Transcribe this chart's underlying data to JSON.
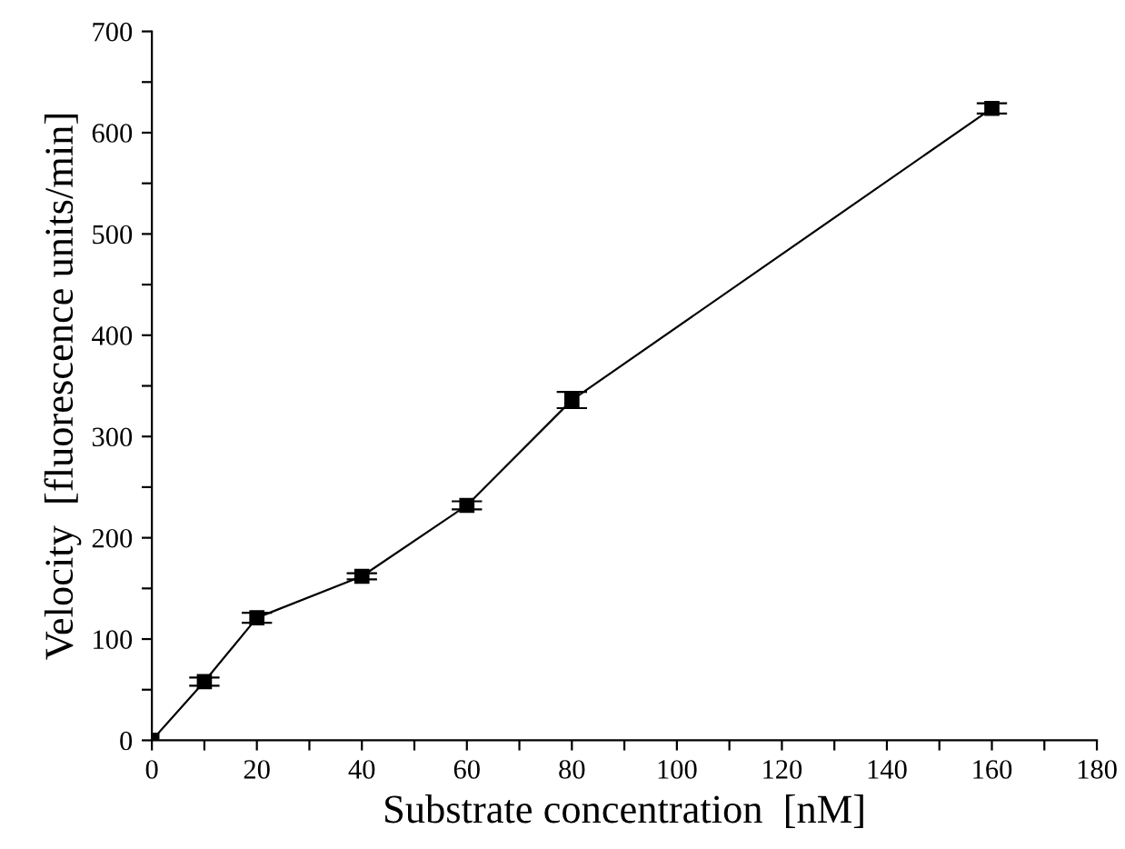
{
  "chart_data": {
    "type": "line",
    "xlabel": "Substrate concentration  [nM]",
    "ylabel": "Velocity  [fluorescence units/min]",
    "x": [
      0,
      10,
      20,
      40,
      60,
      80,
      160
    ],
    "series": [
      {
        "color": "#000000",
        "values": [
          0,
          58,
          121,
          162,
          232,
          336,
          624
        ],
        "errors": [
          null,
          4,
          5,
          3,
          4,
          8,
          5
        ]
      }
    ],
    "marker": "square",
    "line_style": "solid",
    "grid": false,
    "legend": false,
    "xlim": [
      0,
      180
    ],
    "xticks": [
      0,
      {
        "value": 10,
        "label": null
      },
      20,
      {
        "value": 30,
        "label": null
      },
      40,
      {
        "value": 50,
        "label": null
      },
      60,
      {
        "value": 70,
        "label": null
      },
      80,
      {
        "value": 90,
        "label": null
      },
      100,
      {
        "value": 110,
        "label": null
      },
      120,
      {
        "value": 130,
        "label": null
      },
      140,
      {
        "value": 150,
        "label": null
      },
      160,
      {
        "value": 170,
        "label": null
      },
      180
    ],
    "ylim": [
      0,
      700
    ],
    "yticks": [
      0,
      {
        "value": 50,
        "label": null
      },
      100,
      {
        "value": 150,
        "label": null
      },
      200,
      {
        "value": 250,
        "label": null
      },
      300,
      {
        "value": 350,
        "label": null
      },
      400,
      {
        "value": 450,
        "label": null
      },
      500,
      {
        "value": 550,
        "label": null
      },
      600,
      {
        "value": 650,
        "label": null
      },
      700
    ]
  }
}
